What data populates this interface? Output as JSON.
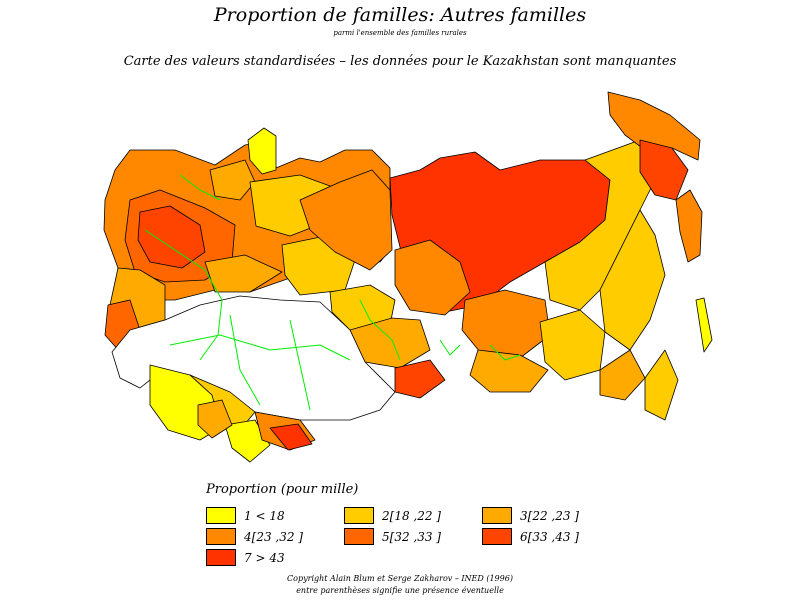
{
  "header": {
    "title": "Proportion de familles: Autres familles",
    "subtitle_small": "parmi l'ensemble des familles rurales",
    "subtitle": "Carte des valeurs standardisées  –  les données pour le Kazakhstan sont manquantes"
  },
  "colors": {
    "class1": "#FFFF00",
    "class2": "#FFCC00",
    "class3": "#FFAA00",
    "class4": "#FF8800",
    "class5": "#FF6600",
    "class6": "#FF4400",
    "class7": "#FF3300",
    "missing": "#FFFFFF",
    "borders": "#000000",
    "rivers_lakes": "#00EE00"
  },
  "legend": {
    "title": "Proportion  (pour mille)",
    "items": [
      {
        "label": "1  <  18",
        "color": "#FFFF00"
      },
      {
        "label": "2[18  ,22  ]",
        "color": "#FFCC00"
      },
      {
        "label": "3[22  ,23  ]",
        "color": "#FFAA00"
      },
      {
        "label": "4[23  ,32  ]",
        "color": "#FF8800"
      },
      {
        "label": "5[32  ,33  ]",
        "color": "#FF6600"
      },
      {
        "label": "6[33  ,43  ]",
        "color": "#FF4400"
      },
      {
        "label": "7  >  43",
        "color": "#FF3300"
      }
    ]
  },
  "footer": {
    "line1": "Copyright  Alain  Blum  et  Serge  Zakharov  –  INED  (1996)",
    "line2": "entre parenthèses signifie une présence éventuelle"
  }
}
